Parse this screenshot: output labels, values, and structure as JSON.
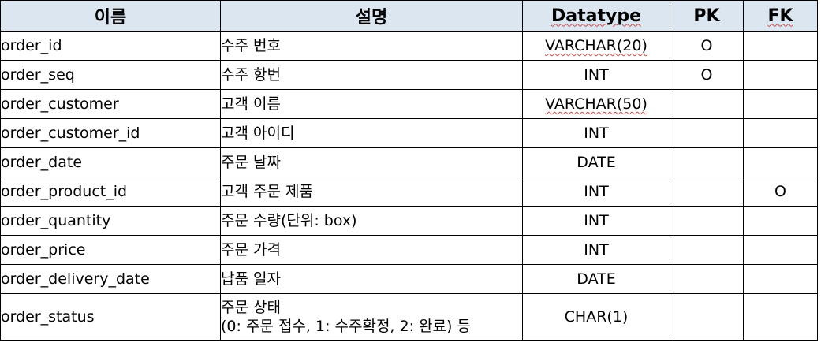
{
  "headers": {
    "name": "이름",
    "description": "설명",
    "datatype": "Datatype",
    "pk": "PK",
    "fk": "FK"
  },
  "rows": [
    {
      "name": "order_id",
      "description": [
        "수주 번호"
      ],
      "datatype": "VARCHAR(20)",
      "pk": "O",
      "fk": ""
    },
    {
      "name": "order_seq",
      "description": [
        "수주 항번"
      ],
      "datatype": "INT",
      "pk": "O",
      "fk": ""
    },
    {
      "name": "order_customer",
      "description": [
        "고객 이름"
      ],
      "datatype": "VARCHAR(50)",
      "pk": "",
      "fk": ""
    },
    {
      "name": "order_customer_id",
      "description": [
        "고객 아이디"
      ],
      "datatype": "INT",
      "pk": "",
      "fk": ""
    },
    {
      "name": "order_date",
      "description": [
        "주문 날짜"
      ],
      "datatype": "DATE",
      "pk": "",
      "fk": ""
    },
    {
      "name": "order_product_id",
      "description": [
        "고객 주문 제품"
      ],
      "datatype": "INT",
      "pk": "",
      "fk": "O"
    },
    {
      "name": "order_quantity",
      "description": [
        "주문 수량(단위: box)"
      ],
      "datatype": "INT",
      "pk": "",
      "fk": ""
    },
    {
      "name": "order_price",
      "description": [
        "주문 가격"
      ],
      "datatype": "INT",
      "pk": "",
      "fk": ""
    },
    {
      "name": "order_delivery_date",
      "description": [
        "납품 일자"
      ],
      "datatype": "DATE",
      "pk": "",
      "fk": ""
    },
    {
      "name": "order_status",
      "description": [
        "주문 상태",
        "(0: 주문 접수, 1: 수주확정, 2: 완료) 등"
      ],
      "datatype": "CHAR(1)",
      "pk": "",
      "fk": ""
    }
  ]
}
